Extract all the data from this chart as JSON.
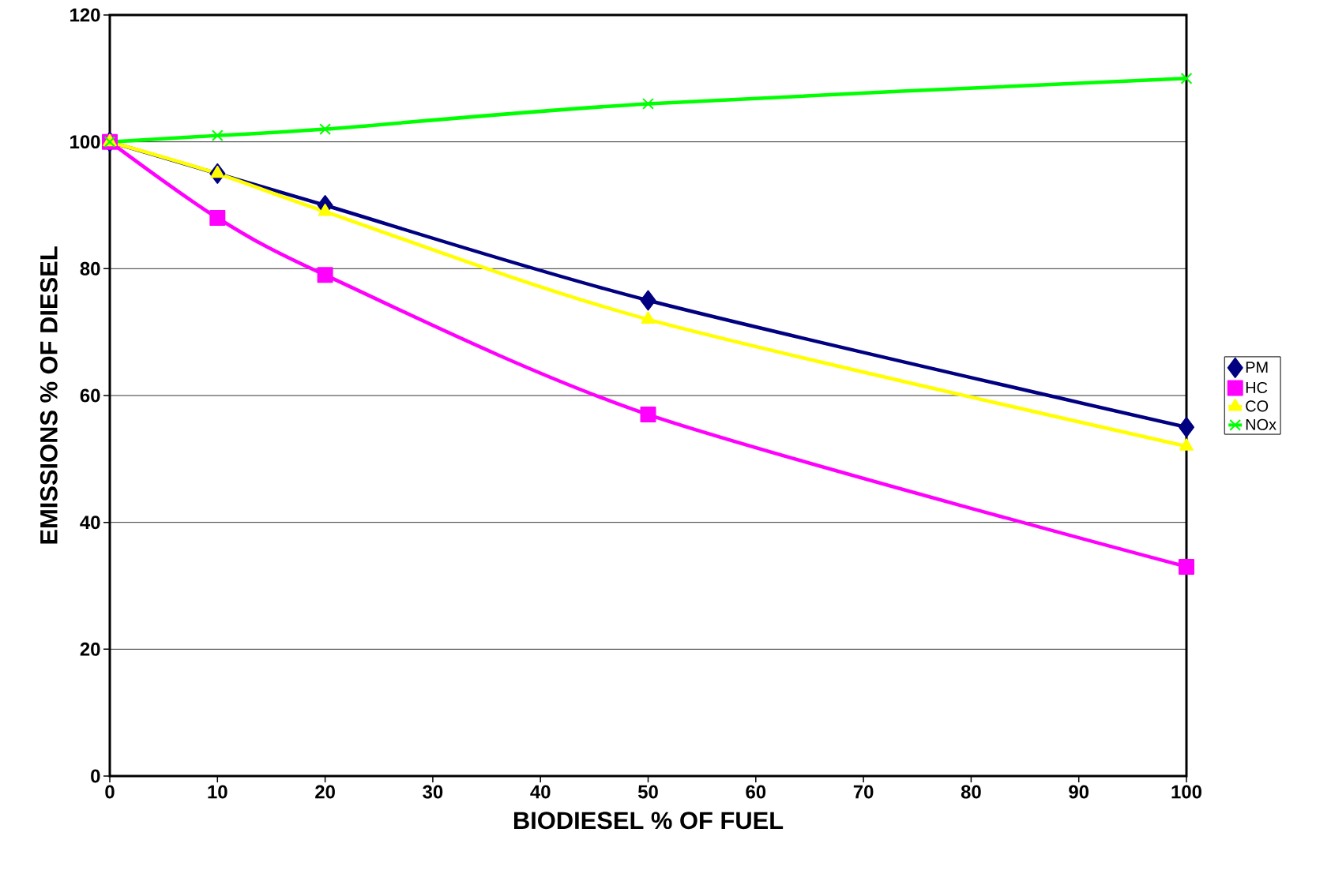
{
  "chart_data": {
    "type": "line",
    "xlabel": "BIODIESEL % OF FUEL",
    "ylabel": "EMISSIONS    % OF DIESEL",
    "x": [
      0,
      10,
      20,
      50,
      100
    ],
    "series": [
      {
        "name": "PM",
        "color": "#000080",
        "marker": "diamond",
        "values": [
          100,
          95,
          90,
          75,
          55
        ]
      },
      {
        "name": "HC",
        "color": "#ff00ff",
        "marker": "square",
        "values": [
          100,
          88,
          79,
          57,
          33
        ]
      },
      {
        "name": "CO",
        "color": "#ffff00",
        "marker": "triangle",
        "values": [
          100,
          95,
          89,
          72,
          52
        ]
      },
      {
        "name": "NOx",
        "color": "#00ff00",
        "marker": "cross",
        "values": [
          100,
          101,
          102,
          106,
          110
        ]
      }
    ],
    "xlim": [
      0,
      100
    ],
    "xticks": [
      0,
      10,
      20,
      30,
      40,
      50,
      60,
      70,
      80,
      90,
      100
    ],
    "ylim": [
      0,
      120
    ],
    "yticks": [
      0,
      20,
      40,
      60,
      80,
      100,
      120
    ],
    "grid": "y",
    "legend": "right",
    "line_style": "solid"
  }
}
